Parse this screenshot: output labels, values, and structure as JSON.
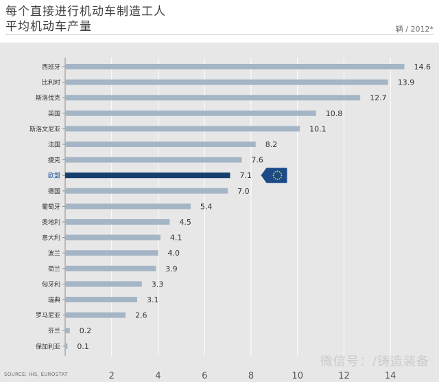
{
  "title": {
    "line1": "每个直接进行机动车制造工人",
    "line2": "平均机动车产量"
  },
  "unit_label": "辆 / 2012*",
  "source": "SOURCE: IHS, EUROSTAT",
  "watermark": "微信号：/铸造装备",
  "colors": {
    "bar": "#a4b6c6",
    "highlight_bar": "#173f6e",
    "background": "#e7e7e7",
    "gridline": "#ffffff",
    "eu_flag": "#1c4a86",
    "eu_stars": "#f3d21b",
    "highlight_label": "#1f5c99"
  },
  "chart_data": {
    "type": "bar",
    "orientation": "horizontal",
    "categories": [
      "西班牙",
      "比利时",
      "斯洛伐克",
      "英国",
      "斯洛文尼亚",
      "法国",
      "捷克",
      "欧盟",
      "德国",
      "葡萄牙",
      "奥地利",
      "意大利",
      "波兰",
      "荷兰",
      "匈牙利",
      "瑞典",
      "罗马尼亚",
      "芬兰",
      "保加利亚"
    ],
    "values": [
      14.6,
      13.9,
      12.7,
      10.8,
      10.1,
      8.2,
      7.6,
      7.1,
      7.0,
      5.4,
      4.5,
      4.1,
      4.0,
      3.9,
      3.3,
      3.1,
      2.6,
      0.2,
      0.1
    ],
    "value_labels": [
      "14.6",
      "13.9",
      "12.7",
      "10.8",
      "10.1",
      "8.2",
      "7.6",
      "7.1",
      "7.0",
      "5.4",
      "4.5",
      "4.1",
      "4.0",
      "3.9",
      "3.3",
      "3.1",
      "2.6",
      "0.2",
      "0.1"
    ],
    "highlight": "欧盟",
    "highlight_marker": "eu-flag-icon",
    "xlim": [
      0,
      15.5
    ],
    "xticks": [
      2,
      4,
      6,
      8,
      10,
      12,
      14
    ],
    "xtick_labels": [
      "2",
      "4",
      "6",
      "8",
      "10",
      "12",
      "14"
    ],
    "grid": true
  }
}
